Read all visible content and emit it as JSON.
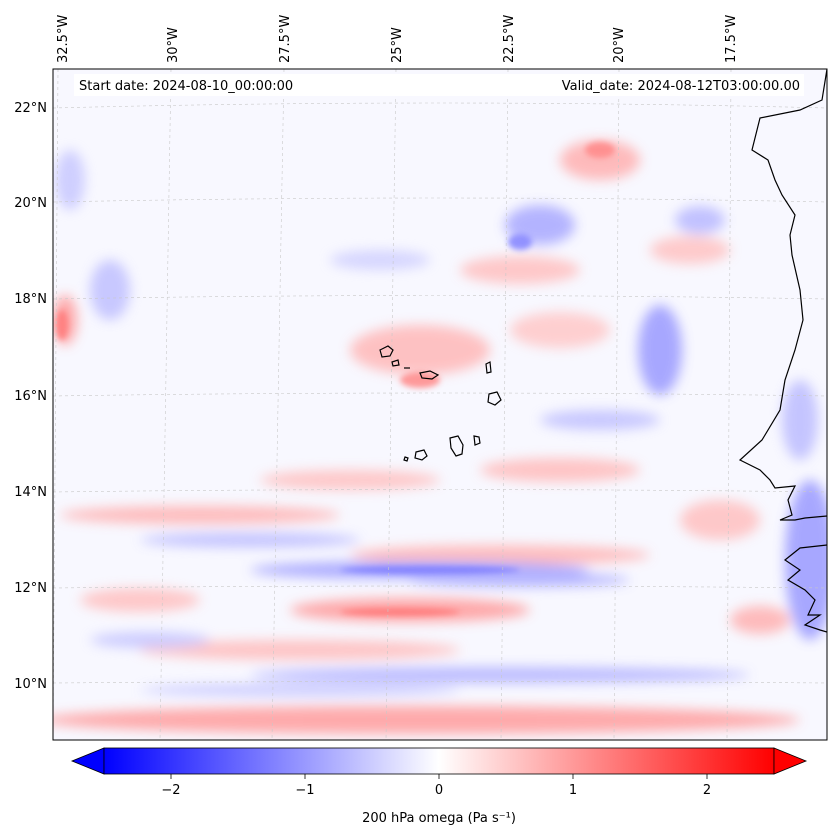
{
  "header": {
    "start_date": "Start date: 2024-08-10_00:00:00",
    "valid_date": "Valid_date: 2024-08-12T03:00:00.00"
  },
  "chart_data": {
    "type": "map-contour",
    "variable": "200 hPa omega (Pa s⁻¹)",
    "longitude_ticks": [
      "32.5°W",
      "30°W",
      "27.5°W",
      "25°W",
      "22.5°W",
      "20°W",
      "17.5°W"
    ],
    "longitude_values": [
      -32.5,
      -30,
      -27.5,
      -25,
      -22.5,
      -20,
      -17.5
    ],
    "latitude_ticks": [
      "22°N",
      "20°N",
      "18°N",
      "16°N",
      "14°N",
      "12°N",
      "10°N"
    ],
    "latitude_values": [
      22,
      20,
      18,
      16,
      14,
      12,
      10
    ],
    "lon_range": [
      -32.5,
      -15.3
    ],
    "lat_range": [
      8.8,
      22.8
    ],
    "colorbar": {
      "range": [
        -2.5,
        2.5
      ],
      "ticks": [
        -2,
        -1,
        0,
        1,
        2
      ],
      "tick_labels": [
        "−2",
        "−1",
        "0",
        "1",
        "2"
      ],
      "cmap": "bwr",
      "extend": "both",
      "low_color": "#0000ff",
      "mid_color": "#ffffff",
      "high_color": "#ff0000"
    }
  }
}
